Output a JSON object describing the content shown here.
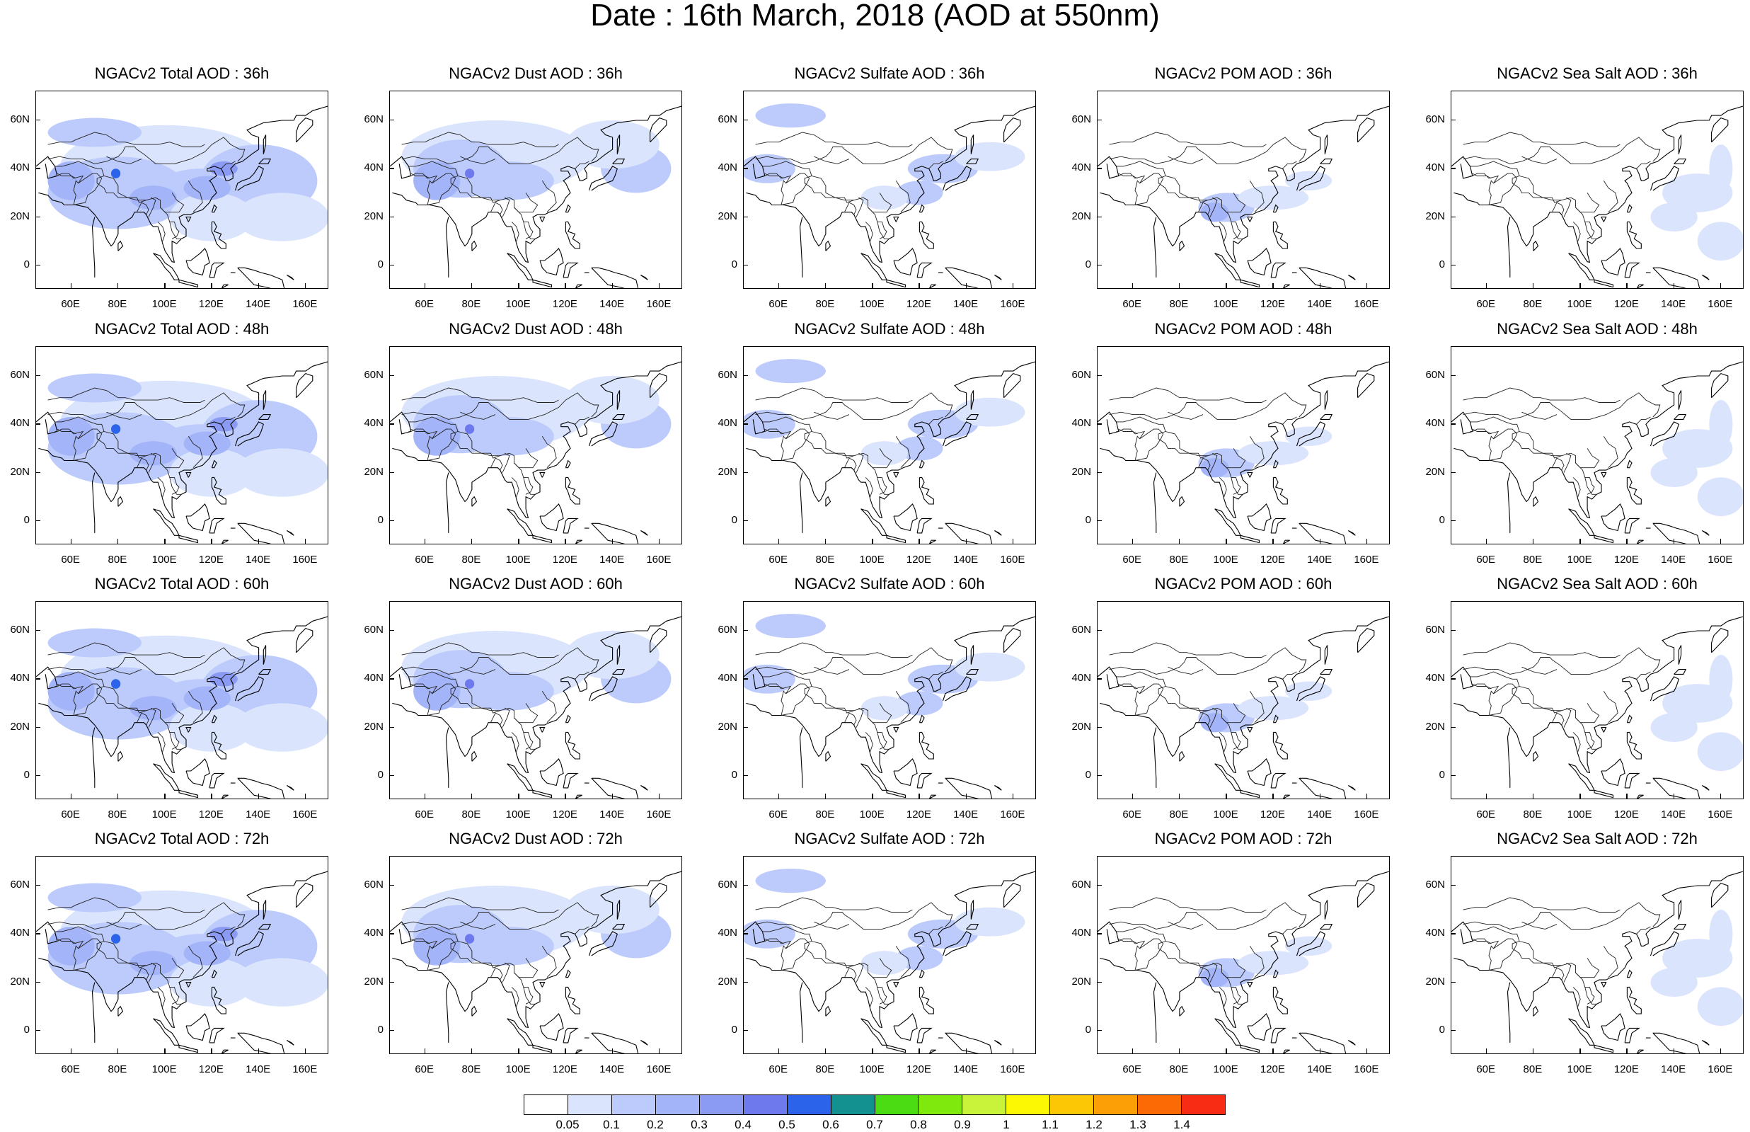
{
  "figure": {
    "title": "Date : 16th March, 2018 (AOD at 550nm)"
  },
  "map_axes": {
    "x_labels": [
      "60E",
      "80E",
      "100E",
      "120E",
      "140E",
      "160E"
    ],
    "y_labels": [
      "60N",
      "40N",
      "20N",
      "0"
    ]
  },
  "panels": [
    {
      "title": "NGACv2 Total AOD : 36h",
      "species": "total"
    },
    {
      "title": "NGACv2 Dust AOD : 36h",
      "species": "dust"
    },
    {
      "title": "NGACv2 Sulfate AOD : 36h",
      "species": "sulfate"
    },
    {
      "title": "NGACv2 POM AOD : 36h",
      "species": "pom"
    },
    {
      "title": "NGACv2 Sea Salt AOD : 36h",
      "species": "seasalt"
    },
    {
      "title": "NGACv2 Total AOD : 48h",
      "species": "total"
    },
    {
      "title": "NGACv2 Dust AOD : 48h",
      "species": "dust"
    },
    {
      "title": "NGACv2 Sulfate AOD : 48h",
      "species": "sulfate"
    },
    {
      "title": "NGACv2 POM AOD : 48h",
      "species": "pom"
    },
    {
      "title": "NGACv2 Sea Salt AOD : 48h",
      "species": "seasalt"
    },
    {
      "title": "NGACv2 Total AOD : 60h",
      "species": "total"
    },
    {
      "title": "NGACv2 Dust AOD : 60h",
      "species": "dust"
    },
    {
      "title": "NGACv2 Sulfate AOD : 60h",
      "species": "sulfate"
    },
    {
      "title": "NGACv2 POM AOD : 60h",
      "species": "pom"
    },
    {
      "title": "NGACv2 Sea Salt AOD : 60h",
      "species": "seasalt"
    },
    {
      "title": "NGACv2 Total AOD : 72h",
      "species": "total"
    },
    {
      "title": "NGACv2 Dust AOD : 72h",
      "species": "dust"
    },
    {
      "title": "NGACv2 Sulfate AOD : 72h",
      "species": "sulfate"
    },
    {
      "title": "NGACv2 POM AOD : 72h",
      "species": "pom"
    },
    {
      "title": "NGACv2 Sea Salt  AOD : 72h",
      "species": "seasalt"
    }
  ],
  "colorbar": {
    "labels": [
      "0.05",
      "0.1",
      "0.2",
      "0.3",
      "0.4",
      "0.5",
      "0.6",
      "0.7",
      "0.8",
      "0.9",
      "1",
      "1.1",
      "1.2",
      "1.3",
      "1.4"
    ],
    "colors": [
      "#ffffff",
      "#dbe4fd",
      "#bccbfb",
      "#a3b4f8",
      "#8b9bf3",
      "#6d79ec",
      "#2b63ea",
      "#139090",
      "#4bdc14",
      "#7fe80d",
      "#c9f23b",
      "#fcf803",
      "#fcc806",
      "#fc9f06",
      "#fc6a06",
      "#f82c14"
    ]
  }
}
